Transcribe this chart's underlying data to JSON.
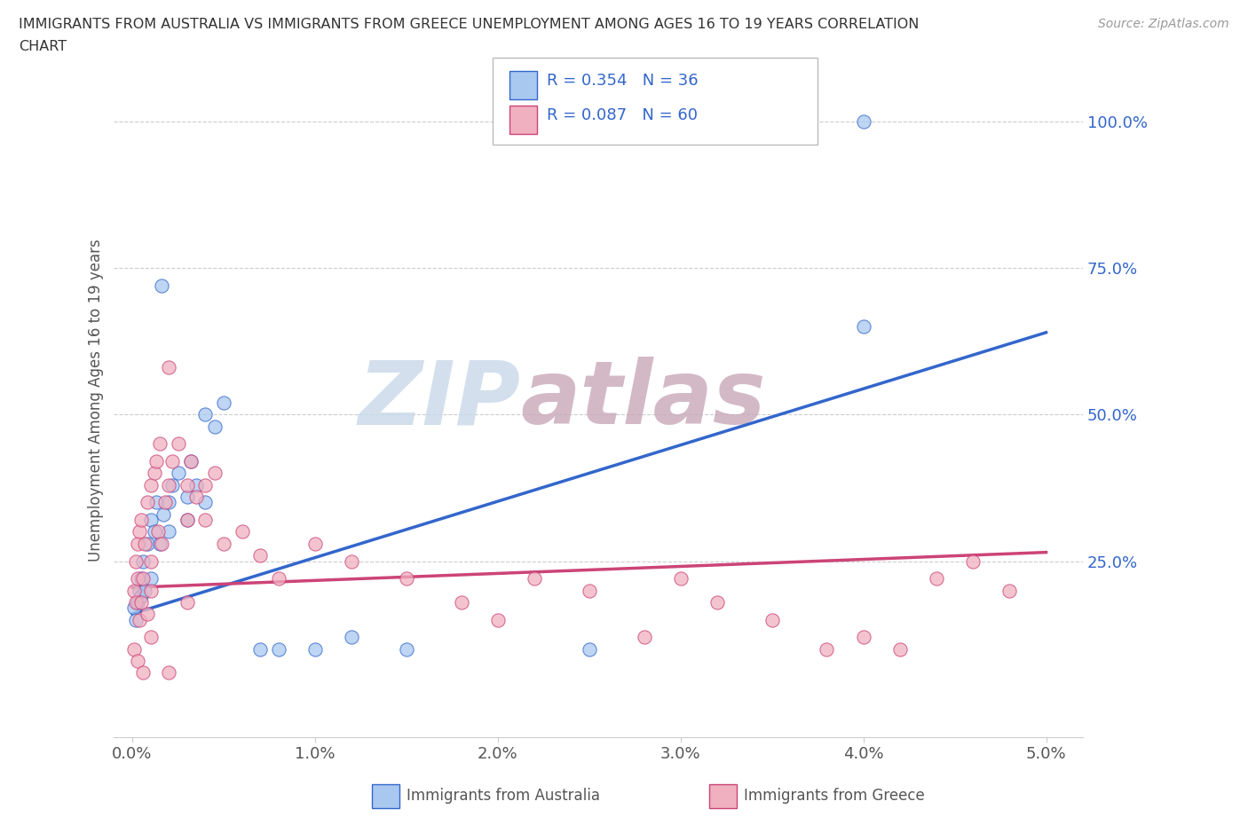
{
  "title_line1": "IMMIGRANTS FROM AUSTRALIA VS IMMIGRANTS FROM GREECE UNEMPLOYMENT AMONG AGES 16 TO 19 YEARS CORRELATION",
  "title_line2": "CHART",
  "source": "Source: ZipAtlas.com",
  "ylabel": "Unemployment Among Ages 16 to 19 years",
  "xlim": [
    -0.001,
    0.052
  ],
  "ylim": [
    -0.05,
    1.1
  ],
  "xtick_labels": [
    "0.0%",
    "1.0%",
    "2.0%",
    "3.0%",
    "4.0%",
    "5.0%"
  ],
  "xtick_values": [
    0.0,
    0.01,
    0.02,
    0.03,
    0.04,
    0.05
  ],
  "ytick_labels_right": [
    "100.0%",
    "75.0%",
    "50.0%",
    "25.0%"
  ],
  "ytick_values_right": [
    1.0,
    0.75,
    0.5,
    0.25
  ],
  "legend_label1": "Immigrants from Australia",
  "legend_label2": "Immigrants from Greece",
  "color_australia": "#a8c8f0",
  "color_greece": "#f0b0c0",
  "line_color_australia": "#3366cc",
  "line_color_greece": "#cc4477",
  "watermark": "ZIPatlas",
  "watermark_color_top": "#c8d8e8",
  "watermark_color_bottom": "#c8a8b8",
  "background_color": "#ffffff",
  "grid_color": "#cccccc",
  "aus_line_x0": 0.0,
  "aus_line_y0": 0.16,
  "aus_line_x1": 0.05,
  "aus_line_y1": 0.64,
  "gre_line_x0": 0.0,
  "gre_line_y0": 0.205,
  "gre_line_x1": 0.05,
  "gre_line_y1": 0.265,
  "australia_x": [
    0.0001,
    0.0002,
    0.0003,
    0.0004,
    0.0005,
    0.0005,
    0.0006,
    0.0007,
    0.0008,
    0.001,
    0.001,
    0.0012,
    0.0013,
    0.0015,
    0.0016,
    0.0017,
    0.002,
    0.002,
    0.0022,
    0.0025,
    0.003,
    0.003,
    0.0032,
    0.0035,
    0.004,
    0.004,
    0.0045,
    0.005,
    0.007,
    0.008,
    0.01,
    0.012,
    0.015,
    0.025,
    0.04,
    0.04
  ],
  "australia_y": [
    0.17,
    0.15,
    0.18,
    0.2,
    0.22,
    0.19,
    0.25,
    0.2,
    0.28,
    0.22,
    0.32,
    0.3,
    0.35,
    0.28,
    0.72,
    0.33,
    0.3,
    0.35,
    0.38,
    0.4,
    0.32,
    0.36,
    0.42,
    0.38,
    0.5,
    0.35,
    0.48,
    0.52,
    0.1,
    0.1,
    0.1,
    0.12,
    0.1,
    0.1,
    1.0,
    0.65
  ],
  "greece_x": [
    0.0001,
    0.0002,
    0.0002,
    0.0003,
    0.0003,
    0.0004,
    0.0004,
    0.0005,
    0.0005,
    0.0006,
    0.0007,
    0.0008,
    0.0008,
    0.001,
    0.001,
    0.001,
    0.0012,
    0.0013,
    0.0014,
    0.0015,
    0.0016,
    0.0018,
    0.002,
    0.002,
    0.0022,
    0.0025,
    0.003,
    0.003,
    0.0032,
    0.0035,
    0.004,
    0.004,
    0.0045,
    0.005,
    0.006,
    0.007,
    0.008,
    0.01,
    0.012,
    0.015,
    0.018,
    0.02,
    0.022,
    0.025,
    0.028,
    0.03,
    0.032,
    0.035,
    0.038,
    0.04,
    0.042,
    0.044,
    0.046,
    0.048,
    0.003,
    0.0001,
    0.0003,
    0.0006,
    0.001,
    0.002
  ],
  "greece_y": [
    0.2,
    0.18,
    0.25,
    0.22,
    0.28,
    0.15,
    0.3,
    0.18,
    0.32,
    0.22,
    0.28,
    0.16,
    0.35,
    0.38,
    0.2,
    0.25,
    0.4,
    0.42,
    0.3,
    0.45,
    0.28,
    0.35,
    0.58,
    0.38,
    0.42,
    0.45,
    0.38,
    0.32,
    0.42,
    0.36,
    0.32,
    0.38,
    0.4,
    0.28,
    0.3,
    0.26,
    0.22,
    0.28,
    0.25,
    0.22,
    0.18,
    0.15,
    0.22,
    0.2,
    0.12,
    0.22,
    0.18,
    0.15,
    0.1,
    0.12,
    0.1,
    0.22,
    0.25,
    0.2,
    0.18,
    0.1,
    0.08,
    0.06,
    0.12,
    0.06
  ]
}
